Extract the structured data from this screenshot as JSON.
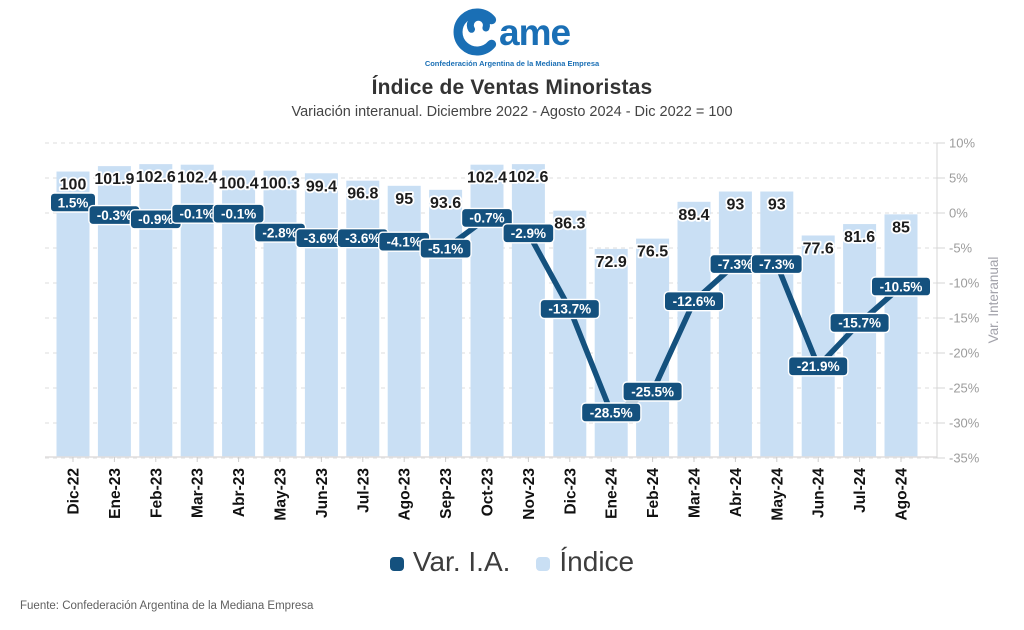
{
  "logo": {
    "brand": "ame",
    "tagline": "Confederación Argentina de la Mediana Empresa",
    "color": "#1a6fb5"
  },
  "header": {
    "title": "Índice de Ventas Minoristas",
    "subtitle": "Variación interanual. Diciembre 2022 - Agosto 2024 - Dic 2022 = 100"
  },
  "chart_data": {
    "type": "combo-bar-line",
    "categories": [
      "Dic-22",
      "Ene-23",
      "Feb-23",
      "Mar-23",
      "Abr-23",
      "May-23",
      "Jun-23",
      "Jul-23",
      "Ago-23",
      "Sep-23",
      "Oct-23",
      "Nov-23",
      "Dic-23",
      "Ene-24",
      "Feb-24",
      "Mar-24",
      "Abr-24",
      "May-24",
      "Jun-24",
      "Jul-24",
      "Ago-24"
    ],
    "series": [
      {
        "name": "Índice",
        "type": "bar",
        "color": "#c9dff4",
        "values": [
          100,
          101.9,
          102.6,
          102.4,
          100.4,
          100.3,
          99.4,
          96.8,
          95,
          93.6,
          102.4,
          102.6,
          86.3,
          72.9,
          76.5,
          89.4,
          93,
          93,
          77.6,
          81.6,
          85
        ],
        "labels": [
          "100",
          "101.9",
          "102.6",
          "102.4",
          "100.4",
          "100.3",
          "99.4",
          "96.8",
          "95",
          "93.6",
          "102.4",
          "102.6",
          "86.3",
          "72.9",
          "76.5",
          "89.4",
          "93",
          "93",
          "77.6",
          "81.6",
          "85"
        ]
      },
      {
        "name": "Var. I.A.",
        "type": "line",
        "color": "#14517e",
        "values": [
          1.5,
          -0.3,
          -0.9,
          -0.1,
          -0.1,
          -2.8,
          -3.6,
          -3.6,
          -4.1,
          -5.1,
          -0.7,
          -2.9,
          -13.7,
          -28.5,
          -25.5,
          -12.6,
          -7.3,
          -7.3,
          -21.9,
          -15.7,
          -10.5
        ],
        "labels": [
          "1.5%",
          "-0.3%",
          "-0.9%",
          "-0.1%",
          "-0.1%",
          "-2.8%",
          "-3.6%",
          "-3.6%",
          "-4.1%",
          "-5.1%",
          "-0.7%",
          "-2.9%",
          "-13.7%",
          "-28.5%",
          "-25.5%",
          "-12.6%",
          "-7.3%",
          "-7.3%",
          "-21.9%",
          "-15.7%",
          "-10.5%"
        ]
      }
    ],
    "right_axis": {
      "title": "Var. Interanual",
      "ticks": [
        10,
        5,
        0,
        -5,
        -10,
        -15,
        -20,
        -25,
        -30,
        -35
      ],
      "tick_labels": [
        "10%",
        "5%",
        "0%",
        "-5%",
        "-10%",
        "-15%",
        "-20%",
        "-25%",
        "-30%",
        "-35%"
      ],
      "min": -35,
      "max": 10
    },
    "bar_axis": {
      "min": 0,
      "max": 110
    },
    "grid": "horizontal-dashed",
    "legend_position": "bottom"
  },
  "legend": {
    "items": [
      {
        "label": "Var. I.A.",
        "color": "#14517e"
      },
      {
        "label": "Índice",
        "color": "#c9dff4"
      }
    ]
  },
  "footer": {
    "source": "Fuente: Confederación Argentina de la Mediana Empresa"
  },
  "colors": {
    "bar": "#c9dff4",
    "line": "#14517e",
    "grid": "#d9d9d9",
    "axis_text": "#9c9c9c",
    "value_text": "#1c1c1c"
  }
}
